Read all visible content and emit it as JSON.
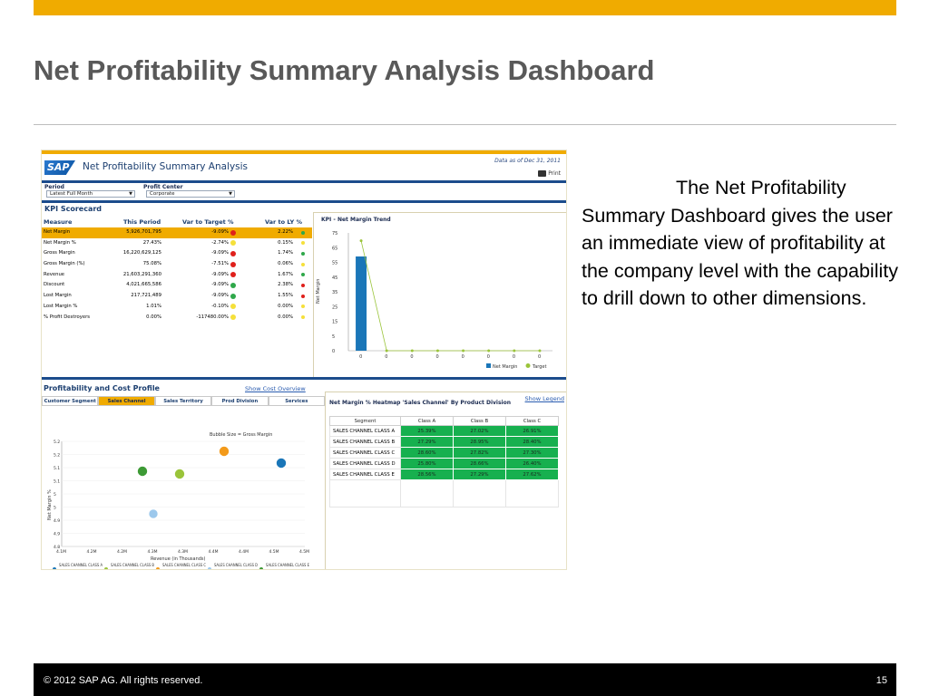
{
  "slide": {
    "title": "Net Profitability Summary Analysis Dashboard",
    "description": "The Net Profitability Summary Dashboard gives the user an immediate view of profitability at the company level with the capability to drill down to other dimensions.",
    "footer_copyright": "© 2012 SAP AG. All rights reserved.",
    "page_number": "15",
    "accent_color": "#f0ab00"
  },
  "dashboard": {
    "logo": "SAP",
    "title": "Net Profitability Summary Analysis",
    "as_of": "Data as of Dec 31, 2011",
    "print_label": "Print",
    "filters": {
      "period_label": "Period",
      "period_value": "Latest Full Month",
      "profit_center_label": "Profit Center",
      "profit_center_value": "Corporate"
    },
    "kpi": {
      "title": "KPI Scorecard",
      "headers": [
        "Measure",
        "This Period",
        "Var to Target %",
        "Var to LY %"
      ],
      "rows": [
        {
          "measure": "Net Margin",
          "this_period": "5,926,701,795",
          "var_target": "-9.09%",
          "target_status": "red",
          "var_ly": "2.22%",
          "ly_status": "green"
        },
        {
          "measure": "Net Margin %",
          "this_period": "27.43%",
          "var_target": "-2.74%",
          "target_status": "yellow",
          "var_ly": "0.15%",
          "ly_status": "yellow"
        },
        {
          "measure": "Gross Margin",
          "this_period": "16,220,629,125",
          "var_target": "-9.09%",
          "target_status": "red",
          "var_ly": "1.74%",
          "ly_status": "green"
        },
        {
          "measure": "Gross Margin (%)",
          "this_period": "75.08%",
          "var_target": "-7.51%",
          "target_status": "red",
          "var_ly": "0.06%",
          "ly_status": "yellow"
        },
        {
          "measure": "Revenue",
          "this_period": "21,603,291,360",
          "var_target": "-9.09%",
          "target_status": "red",
          "var_ly": "1.67%",
          "ly_status": "green"
        },
        {
          "measure": "Discount",
          "this_period": "4,021,665,586",
          "var_target": "-9.09%",
          "target_status": "green",
          "var_ly": "2.38%",
          "ly_status": "red"
        },
        {
          "measure": "Lost Margin",
          "this_period": "217,721,489",
          "var_target": "-9.09%",
          "target_status": "green",
          "var_ly": "1.55%",
          "ly_status": "red"
        },
        {
          "measure": "Lost Margin %",
          "this_period": "1.01%",
          "var_target": "-0.10%",
          "target_status": "yellow",
          "var_ly": "0.00%",
          "ly_status": "yellow"
        },
        {
          "measure": "% Profit Destroyers",
          "this_period": "0.00%",
          "var_target": "-117480.00%",
          "target_status": "yellow",
          "var_ly": "0.00%",
          "ly_status": "yellow"
        }
      ]
    },
    "trend": {
      "title": "KPI - Net Margin Trend",
      "ylabel": "Net Margin",
      "yticks": [
        "75",
        "65",
        "55",
        "45",
        "35",
        "25",
        "15",
        "5",
        "0"
      ],
      "x_labels": [
        "0",
        "0",
        "0",
        "0",
        "0",
        "0",
        "0",
        "0"
      ],
      "legend": [
        "Net Margin",
        "Target"
      ],
      "bar_values": [
        60,
        0,
        0,
        0,
        0,
        0,
        0,
        0
      ],
      "target_values": [
        70,
        0,
        0,
        0,
        0,
        0,
        0,
        0
      ]
    },
    "profitability": {
      "title": "Profitability and Cost Profile",
      "link": "Show Cost Overview",
      "tabs": [
        "Customer Segment",
        "Sales Channel",
        "Sales Territory",
        "Prod Division",
        "Services"
      ],
      "active_tab": 1,
      "bubble_note": "Bubble Size = Gross Margin",
      "ylabel": "Net Margin %",
      "xlabel": "Revenue (in Thousands)",
      "yticks": [
        "5.2",
        "5.2",
        "5.1",
        "5.1",
        "5",
        "5",
        "4.9",
        "4.9",
        "4.8"
      ],
      "xticks": [
        "4.1M",
        "4.2M",
        "4.2M",
        "4.3M",
        "4.3M",
        "4.4M",
        "4.4M",
        "4.5M",
        "4.5M"
      ],
      "legend": [
        {
          "label": "SALES CHANNEL CLASS A",
          "color": "#1a76b8"
        },
        {
          "label": "SALES CHANNEL CLASS B",
          "color": "#9ac43a"
        },
        {
          "label": "SALES CHANNEL CLASS C",
          "color": "#f39a1a"
        },
        {
          "label": "SALES CHANNEL CLASS D",
          "color": "#9cc8ec"
        },
        {
          "label": "SALES CHANNEL CLASS E",
          "color": "#3d9a35"
        }
      ]
    },
    "heatmap": {
      "title": "Net Margin % Heatmap 'Sales Channel' By Product Division",
      "link": "Show Legend",
      "columns": [
        "Segment",
        "Class A",
        "Class B",
        "Class C"
      ],
      "rows": [
        {
          "segment": "SALES CHANNEL CLASS A",
          "values": [
            "25.39%",
            "27.02%",
            "26.91%"
          ]
        },
        {
          "segment": "SALES CHANNEL CLASS B",
          "values": [
            "27.29%",
            "28.95%",
            "28.40%"
          ]
        },
        {
          "segment": "SALES CHANNEL CLASS C",
          "values": [
            "28.60%",
            "27.82%",
            "27.30%"
          ]
        },
        {
          "segment": "SALES CHANNEL CLASS D",
          "values": [
            "25.80%",
            "28.66%",
            "26.40%"
          ]
        },
        {
          "segment": "SALES CHANNEL CLASS E",
          "values": [
            "28.56%",
            "27.29%",
            "27.62%"
          ]
        }
      ]
    }
  }
}
